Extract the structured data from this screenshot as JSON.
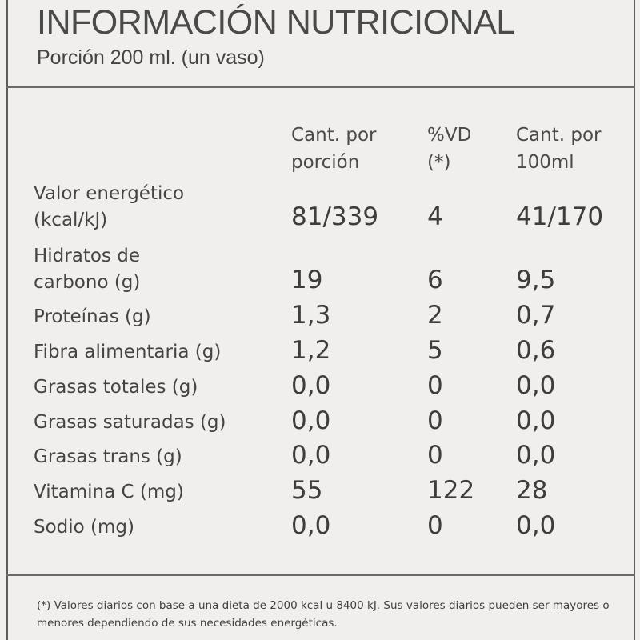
{
  "title": "INFORMACIÓN NUTRICIONAL",
  "serving": "Porción 200 ml. (un vaso)",
  "headers": {
    "col1_line1": "Cant. por",
    "col1_line2": "porción",
    "col2_line1": "%VD",
    "col2_line2": "(*)",
    "col3_line1": "Cant. por",
    "col3_line2": "100ml"
  },
  "rows": [
    {
      "label_line1": "Valor energético",
      "label_line2": "(kcal/kJ)",
      "portion": "81/339",
      "vd": "4",
      "per100": "41/170"
    },
    {
      "label_line1": "Hidratos de",
      "label_line2": "carbono (g)",
      "portion": "19",
      "vd": "6",
      "per100": "9,5"
    },
    {
      "label": "Proteínas (g)",
      "portion": "1,3",
      "vd": "2",
      "per100": "0,7"
    },
    {
      "label": "Fibra alimentaria (g)",
      "portion": "1,2",
      "vd": "5",
      "per100": "0,6"
    },
    {
      "label": "Grasas totales (g)",
      "portion": "0,0",
      "vd": "0",
      "per100": "0,0"
    },
    {
      "label": "Grasas saturadas (g)",
      "portion": "0,0",
      "vd": "0",
      "per100": "0,0"
    },
    {
      "label": "Grasas trans (g)",
      "portion": "0,0",
      "vd": "0",
      "per100": "0,0"
    },
    {
      "label": "Vitamina C (mg)",
      "portion": "55",
      "vd": "122",
      "per100": "28"
    },
    {
      "label": "Sodio (mg)",
      "portion": "0,0",
      "vd": "0",
      "per100": "0,0"
    }
  ],
  "footnote": "(*) Valores diarios con base a una dieta de 2000 kcal u 8400 kJ. Sus valores diarios pueden ser mayores o menores dependiendo de sus necesidades energéticas."
}
